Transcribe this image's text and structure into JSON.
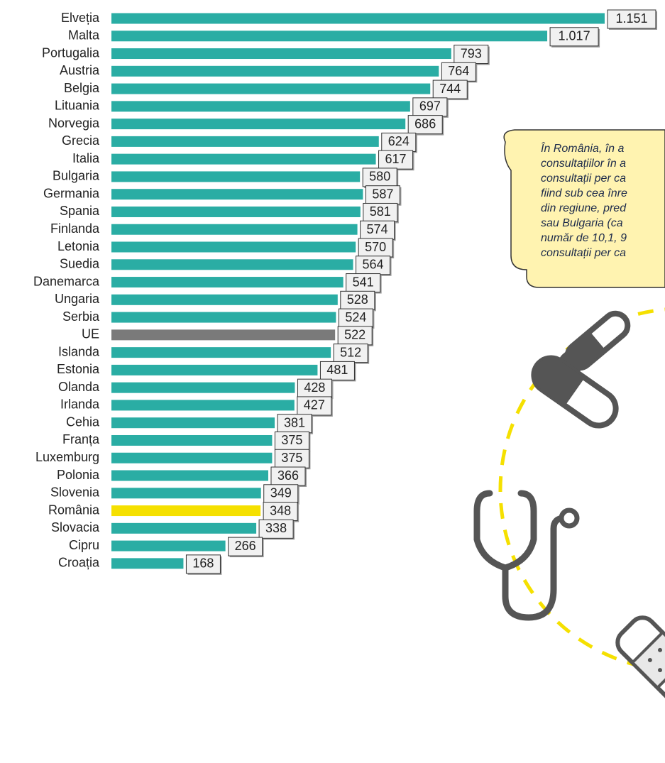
{
  "chart_data": {
    "type": "bar",
    "orientation": "horizontal",
    "categories": [
      "Elveția",
      "Malta",
      "Portugalia",
      "Austria",
      "Belgia",
      "Lituania",
      "Norvegia",
      "Grecia",
      "Italia",
      "Bulgaria",
      "Germania",
      "Spania",
      "Finlanda",
      "Letonia",
      "Suedia",
      "Danemarca",
      "Ungaria",
      "Serbia",
      "UE",
      "Islanda",
      "Estonia",
      "Olanda",
      "Irlanda",
      "Cehia",
      "Franța",
      "Luxemburg",
      "Polonia",
      "Slovenia",
      "România",
      "Slovacia",
      "Cipru",
      "Croația"
    ],
    "values": [
      1151,
      1017,
      793,
      764,
      744,
      697,
      686,
      624,
      617,
      580,
      587,
      581,
      574,
      570,
      564,
      541,
      528,
      524,
      522,
      512,
      481,
      428,
      427,
      381,
      375,
      375,
      366,
      349,
      348,
      338,
      266,
      168
    ],
    "value_labels": [
      "1.151",
      "1.017",
      "793",
      "764",
      "744",
      "697",
      "686",
      "624",
      "617",
      "580",
      "587",
      "581",
      "574",
      "570",
      "564",
      "541",
      "528",
      "524",
      "522",
      "512",
      "481",
      "428",
      "427",
      "381",
      "375",
      "375",
      "366",
      "349",
      "348",
      "338",
      "266",
      "168"
    ],
    "colors": [
      "#2aada4",
      "#2aada4",
      "#2aada4",
      "#2aada4",
      "#2aada4",
      "#2aada4",
      "#2aada4",
      "#2aada4",
      "#2aada4",
      "#2aada4",
      "#2aada4",
      "#2aada4",
      "#2aada4",
      "#2aada4",
      "#2aada4",
      "#2aada4",
      "#2aada4",
      "#2aada4",
      "#7a7a7a",
      "#2aada4",
      "#2aada4",
      "#2aada4",
      "#2aada4",
      "#2aada4",
      "#2aada4",
      "#2aada4",
      "#2aada4",
      "#2aada4",
      "#f5e000",
      "#2aada4",
      "#2aada4",
      "#2aada4"
    ],
    "annotation": [
      "În România, în a",
      "consultațiilor în a",
      "consultații per ca",
      "fiind sub cea înre",
      "din regiune, pred",
      "sau Bulgaria (ca",
      "număr de 10,1, 9",
      "consultații per ca"
    ]
  }
}
